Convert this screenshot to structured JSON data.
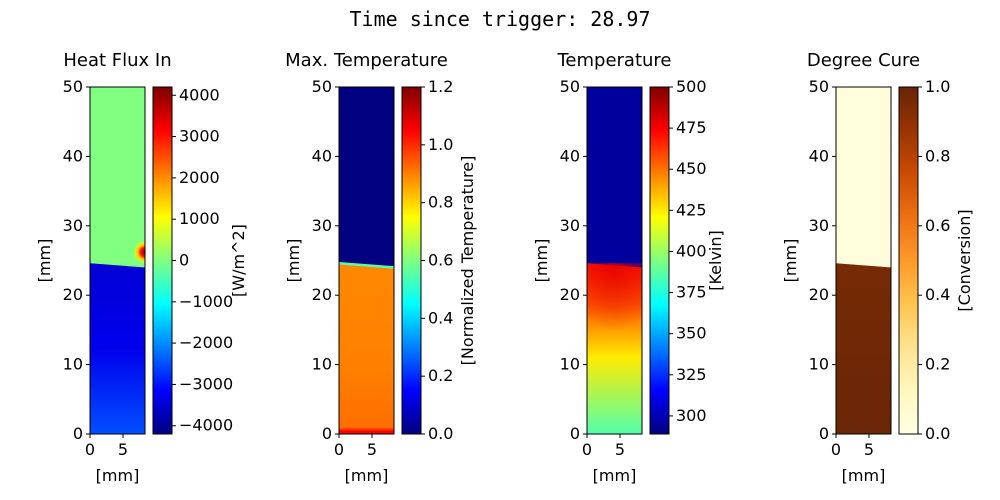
{
  "suptitle": "Time since trigger: 28.97",
  "chart_data": [
    {
      "type": "heatmap",
      "title": "Heat Flux In",
      "xlabel": "[mm]",
      "ylabel": "[mm]",
      "xlim": [
        0,
        8.33
      ],
      "ylim": [
        0,
        50
      ],
      "xticks": [
        0,
        5
      ],
      "yticks": [
        0,
        10,
        20,
        30,
        40,
        50
      ],
      "colorbar": {
        "label": "[W/m^2]",
        "cmap": "jet",
        "range": [
          -4200,
          4200
        ],
        "ticks": [
          -4000,
          -3000,
          -2000,
          -1000,
          0,
          1000,
          2000,
          3000,
          4000
        ],
        "tick_labels": [
          "−4000",
          "−3000",
          "−2000",
          "−1000",
          "0",
          "1000",
          "2000",
          "3000",
          "4000"
        ]
      },
      "field": {
        "front_y_mm": [
          24.6,
          24.0
        ],
        "above_value": 0,
        "below_value_top": -3500,
        "below_value_bottom": -2500,
        "hotspot": {
          "x_mm": 8.0,
          "y_mm": 26.2,
          "value": 4000
        }
      }
    },
    {
      "type": "heatmap",
      "title": "Max. Temperature",
      "xlabel": "[mm]",
      "ylabel": "[mm]",
      "xlim": [
        0,
        8.33
      ],
      "ylim": [
        0,
        50
      ],
      "xticks": [
        0,
        5
      ],
      "yticks": [
        0,
        10,
        20,
        30,
        40,
        50
      ],
      "colorbar": {
        "label": "[Normalized Temperature]",
        "cmap": "jet",
        "range": [
          0,
          1.2
        ],
        "ticks": [
          0,
          0.2,
          0.4,
          0.6,
          0.8,
          1.0,
          1.2
        ],
        "tick_labels": [
          "0.0",
          "0.2",
          "0.4",
          "0.6",
          "0.8",
          "1.0",
          "1.2"
        ]
      },
      "field": {
        "front_y_mm": [
          24.6,
          24.0
        ],
        "above_value": 0.0,
        "front_value": 0.55,
        "below_value_top": 0.89,
        "below_value_bottom": 0.92,
        "base_value": 1.05
      }
    },
    {
      "type": "heatmap",
      "title": "Temperature",
      "xlabel": "[mm]",
      "ylabel": "[mm]",
      "xlim": [
        0,
        8.33
      ],
      "ylim": [
        0,
        50
      ],
      "xticks": [
        0,
        5
      ],
      "yticks": [
        0,
        10,
        20,
        30,
        40,
        50
      ],
      "colorbar": {
        "label": "[Kelvin]",
        "cmap": "jet",
        "range": [
          289,
          500
        ],
        "ticks": [
          300,
          325,
          350,
          375,
          400,
          425,
          450,
          475,
          500
        ],
        "tick_labels": [
          "300",
          "325",
          "350",
          "375",
          "400",
          "425",
          "450",
          "475",
          "500"
        ]
      },
      "field": {
        "front_y_mm": [
          24.6,
          24.0
        ],
        "above_value": 295,
        "below_value_top": 470,
        "below_value_mid": 425,
        "below_value_bottom": 385
      }
    },
    {
      "type": "heatmap",
      "title": "Degree Cure",
      "xlabel": "[mm]",
      "ylabel": "[mm]",
      "xlim": [
        0,
        8.33
      ],
      "ylim": [
        0,
        50
      ],
      "xticks": [
        0,
        5
      ],
      "yticks": [
        0,
        10,
        20,
        30,
        40,
        50
      ],
      "colorbar": {
        "label": "[Conversion]",
        "cmap": "YlOrBr",
        "range": [
          0,
          1
        ],
        "ticks": [
          0,
          0.2,
          0.4,
          0.6,
          0.8,
          1.0
        ],
        "tick_labels": [
          "0.0",
          "0.2",
          "0.4",
          "0.6",
          "0.8",
          "1.0"
        ]
      },
      "field": {
        "front_y_mm": [
          24.6,
          24.0
        ],
        "above_value": 0.03,
        "below_value_top": 0.96,
        "below_value_bottom": 0.99
      }
    }
  ]
}
